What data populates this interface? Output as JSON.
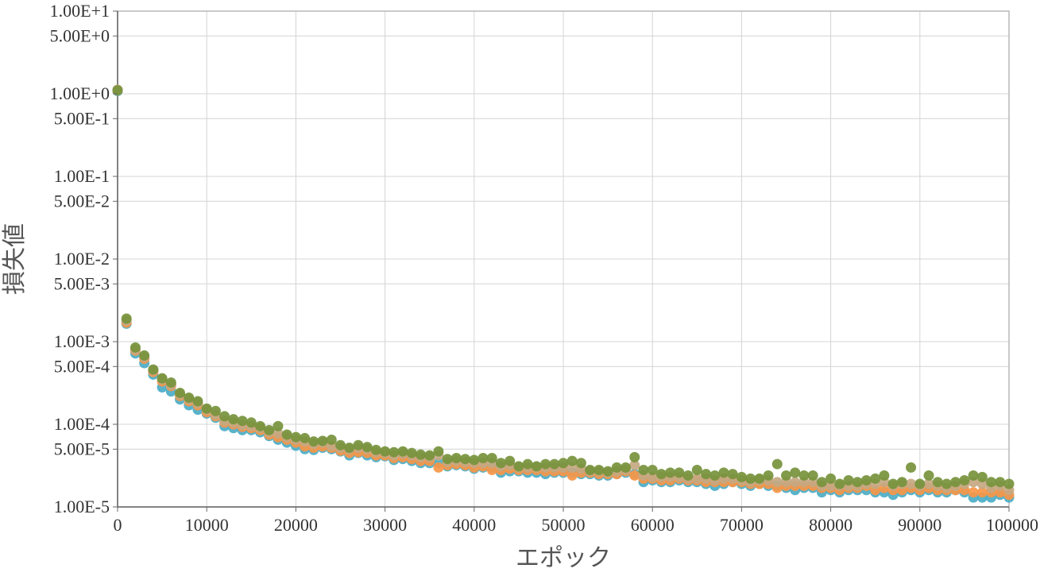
{
  "chart_data": {
    "type": "scatter",
    "xlabel": "エポック",
    "ylabel": "損失値",
    "x_scale": "linear",
    "y_scale": "log",
    "xlim": [
      0,
      100000
    ],
    "ylim": [
      1e-05,
      10
    ],
    "grid": true,
    "legend": "none",
    "x_ticks": [
      {
        "value": 0,
        "label": "0"
      },
      {
        "value": 10000,
        "label": "10000"
      },
      {
        "value": 20000,
        "label": "20000"
      },
      {
        "value": 30000,
        "label": "30000"
      },
      {
        "value": 40000,
        "label": "40000"
      },
      {
        "value": 50000,
        "label": "50000"
      },
      {
        "value": 60000,
        "label": "60000"
      },
      {
        "value": 70000,
        "label": "70000"
      },
      {
        "value": 80000,
        "label": "80000"
      },
      {
        "value": 90000,
        "label": "90000"
      },
      {
        "value": 100000,
        "label": "100000"
      }
    ],
    "y_ticks": [
      {
        "value": 10,
        "label": "1.00E+1"
      },
      {
        "value": 5,
        "label": "5.00E+0"
      },
      {
        "value": 1,
        "label": "1.00E+0"
      },
      {
        "value": 0.5,
        "label": "5.00E-1"
      },
      {
        "value": 0.1,
        "label": "1.00E-1"
      },
      {
        "value": 0.05,
        "label": "5.00E-2"
      },
      {
        "value": 0.01,
        "label": "1.00E-2"
      },
      {
        "value": 0.005,
        "label": "5.00E-3"
      },
      {
        "value": 0.001,
        "label": "1.00E-3"
      },
      {
        "value": 0.0005,
        "label": "5.00E-4"
      },
      {
        "value": 0.0001,
        "label": "1.00E-4"
      },
      {
        "value": 5e-05,
        "label": "5.00E-5"
      },
      {
        "value": 1e-05,
        "label": "1.00E-5"
      }
    ],
    "x": [
      0,
      1000,
      2000,
      3000,
      4000,
      5000,
      6000,
      7000,
      8000,
      9000,
      10000,
      11000,
      12000,
      13000,
      14000,
      15000,
      16000,
      17000,
      18000,
      19000,
      20000,
      21000,
      22000,
      23000,
      24000,
      25000,
      26000,
      27000,
      28000,
      29000,
      30000,
      31000,
      32000,
      33000,
      34000,
      35000,
      36000,
      37000,
      38000,
      39000,
      40000,
      41000,
      42000,
      43000,
      44000,
      45000,
      46000,
      47000,
      48000,
      49000,
      50000,
      51000,
      52000,
      53000,
      54000,
      55000,
      56000,
      57000,
      58000,
      59000,
      60000,
      61000,
      62000,
      63000,
      64000,
      65000,
      66000,
      67000,
      68000,
      69000,
      70000,
      71000,
      72000,
      73000,
      74000,
      75000,
      76000,
      77000,
      78000,
      79000,
      80000,
      81000,
      82000,
      83000,
      84000,
      85000,
      86000,
      87000,
      88000,
      89000,
      90000,
      91000,
      92000,
      93000,
      94000,
      95000,
      96000,
      97000,
      98000,
      99000,
      100000
    ],
    "series": [
      {
        "color": "#4bacc6",
        "values": [
          1.08,
          0.00165,
          0.00072,
          0.00055,
          0.0004,
          0.00028,
          0.00025,
          0.0002,
          0.00017,
          0.00015,
          0.000135,
          0.00012,
          9.5e-05,
          9e-05,
          8.5e-05,
          8.5e-05,
          8e-05,
          7.2e-05,
          6.5e-05,
          6e-05,
          5.5e-05,
          5e-05,
          4.9e-05,
          5.2e-05,
          5e-05,
          4.7e-05,
          4.2e-05,
          4.5e-05,
          4.2e-05,
          4e-05,
          4.1e-05,
          3.7e-05,
          3.8e-05,
          3.6e-05,
          3.4e-05,
          3.4e-05,
          3.4e-05,
          3.1e-05,
          3.2e-05,
          3.1e-05,
          2.9e-05,
          3e-05,
          3e-05,
          2.6e-05,
          2.7e-05,
          2.7e-05,
          2.6e-05,
          2.6e-05,
          2.5e-05,
          2.6e-05,
          2.6e-05,
          2.6e-05,
          2.5e-05,
          2.5e-05,
          2.4e-05,
          2.4e-05,
          2.5e-05,
          2.6e-05,
          2.5e-05,
          2e-05,
          2.1e-05,
          2e-05,
          2e-05,
          2.1e-05,
          2e-05,
          2e-05,
          1.9e-05,
          1.8e-05,
          1.9e-05,
          2e-05,
          1.9e-05,
          1.8e-05,
          1.9e-05,
          1.8e-05,
          1.8e-05,
          1.7e-05,
          1.6e-05,
          1.7e-05,
          1.7e-05,
          1.5e-05,
          1.6e-05,
          1.5e-05,
          1.6e-05,
          1.6e-05,
          1.6e-05,
          1.5e-05,
          1.5e-05,
          1.4e-05,
          1.5e-05,
          1.6e-05,
          1.5e-05,
          1.6e-05,
          1.5e-05,
          1.5e-05,
          1.6e-05,
          1.5e-05,
          1.3e-05,
          1.3e-05,
          1.3e-05,
          1.4e-05,
          1.3e-05
        ]
      },
      {
        "color": "#f79646",
        "values": [
          1.1,
          0.0017,
          0.00078,
          0.00062,
          0.00043,
          0.00033,
          0.00029,
          0.00022,
          0.00019,
          0.00017,
          0.00014,
          0.000125,
          0.000105,
          0.0001,
          9.3e-05,
          9e-05,
          8.5e-05,
          7.5e-05,
          7e-05,
          6.5e-05,
          6e-05,
          5.4e-05,
          5.2e-05,
          5.4e-05,
          5.2e-05,
          4.8e-05,
          4.5e-05,
          4.6e-05,
          4.5e-05,
          4.2e-05,
          4.2e-05,
          3.9e-05,
          4e-05,
          3.8e-05,
          3.6e-05,
          3.6e-05,
          3e-05,
          3.2e-05,
          3.3e-05,
          3.2e-05,
          3e-05,
          3.1e-05,
          2.8e-05,
          2.8e-05,
          2.9e-05,
          2.8e-05,
          2.8e-05,
          2.8e-05,
          2.7e-05,
          2.7e-05,
          2.7e-05,
          2.4e-05,
          2.6e-05,
          2.6e-05,
          2.5e-05,
          2.5e-05,
          2.5e-05,
          2.7e-05,
          2.4e-05,
          2.2e-05,
          2.2e-05,
          2.1e-05,
          2.1e-05,
          2.2e-05,
          2.1e-05,
          2.1e-05,
          2e-05,
          2e-05,
          2e-05,
          2e-05,
          2e-05,
          1.9e-05,
          1.9e-05,
          1.9e-05,
          1.7e-05,
          1.8e-05,
          1.8e-05,
          1.8e-05,
          1.8e-05,
          1.7e-05,
          1.7e-05,
          1.6e-05,
          1.7e-05,
          1.7e-05,
          1.8e-05,
          1.6e-05,
          1.7e-05,
          1.6e-05,
          1.6e-05,
          1.7e-05,
          1.6e-05,
          1.7e-05,
          1.6e-05,
          1.6e-05,
          1.6e-05,
          1.6e-05,
          1.5e-05,
          1.5e-05,
          1.5e-05,
          1.5e-05,
          1.4e-05
        ]
      },
      {
        "color": "#c4a882",
        "values": [
          1.12,
          0.0018,
          0.0008,
          0.00065,
          0.00045,
          0.00035,
          0.0003,
          0.00023,
          0.0002,
          0.00018,
          0.00015,
          0.00013,
          0.00011,
          0.000105,
          9.8e-05,
          9.5e-05,
          9e-05,
          8e-05,
          7.8e-05,
          7e-05,
          6.5e-05,
          6.2e-05,
          5.8e-05,
          6e-05,
          5.5e-05,
          5.2e-05,
          5e-05,
          5.2e-05,
          5e-05,
          4.6e-05,
          4.5e-05,
          4.2e-05,
          4.4e-05,
          4.2e-05,
          4e-05,
          4e-05,
          4.2e-05,
          3.5e-05,
          3.6e-05,
          3.5e-05,
          3.4e-05,
          3.4e-05,
          3.4e-05,
          3.1e-05,
          3.2e-05,
          3e-05,
          3e-05,
          3e-05,
          3e-05,
          3e-05,
          3e-05,
          3e-05,
          2.9e-05,
          2.7e-05,
          2.7e-05,
          2.6e-05,
          2.7e-05,
          2.8e-05,
          3.2e-05,
          2.4e-05,
          2.3e-05,
          2.3e-05,
          2.3e-05,
          2.3e-05,
          2.2e-05,
          2.2e-05,
          2.2e-05,
          2.1e-05,
          2.2e-05,
          2.2e-05,
          2.1e-05,
          2e-05,
          2.1e-05,
          2.1e-05,
          2e-05,
          2e-05,
          2e-05,
          2e-05,
          2e-05,
          1.8e-05,
          1.8e-05,
          1.8e-05,
          1.8e-05,
          1.8e-05,
          1.9e-05,
          1.9e-05,
          2e-05,
          1.8e-05,
          1.9e-05,
          1.9e-05,
          1.8e-05,
          1.9e-05,
          1.8e-05,
          1.7e-05,
          1.8e-05,
          1.9e-05,
          2e-05,
          1.9e-05,
          1.7e-05,
          1.8e-05,
          1.6e-05
        ]
      },
      {
        "color": "#76923c",
        "values": [
          1.1,
          0.0019,
          0.00085,
          0.00068,
          0.00046,
          0.00036,
          0.00032,
          0.00024,
          0.00021,
          0.00019,
          0.000155,
          0.000145,
          0.000125,
          0.000115,
          0.00011,
          0.000105,
          9.5e-05,
          8.5e-05,
          9.5e-05,
          7.5e-05,
          7e-05,
          6.8e-05,
          6.2e-05,
          6.3e-05,
          6.5e-05,
          5.6e-05,
          5.2e-05,
          5.6e-05,
          5.3e-05,
          4.9e-05,
          4.7e-05,
          4.6e-05,
          4.7e-05,
          4.5e-05,
          4.3e-05,
          4.2e-05,
          4.7e-05,
          3.8e-05,
          3.9e-05,
          3.8e-05,
          3.7e-05,
          3.9e-05,
          3.9e-05,
          3.4e-05,
          3.6e-05,
          3.1e-05,
          3.3e-05,
          3.1e-05,
          3.3e-05,
          3.3e-05,
          3.4e-05,
          3.6e-05,
          3.4e-05,
          2.8e-05,
          2.8e-05,
          2.7e-05,
          3e-05,
          3e-05,
          4e-05,
          2.8e-05,
          2.8e-05,
          2.5e-05,
          2.6e-05,
          2.6e-05,
          2.4e-05,
          2.8e-05,
          2.5e-05,
          2.4e-05,
          2.6e-05,
          2.5e-05,
          2.3e-05,
          2.2e-05,
          2.2e-05,
          2.4e-05,
          3.3e-05,
          2.4e-05,
          2.6e-05,
          2.4e-05,
          2.4e-05,
          2e-05,
          2.2e-05,
          1.9e-05,
          2.1e-05,
          2e-05,
          2.1e-05,
          2.2e-05,
          2.4e-05,
          1.9e-05,
          2e-05,
          3e-05,
          1.9e-05,
          2.4e-05,
          2e-05,
          1.9e-05,
          2e-05,
          2.1e-05,
          2.4e-05,
          2.3e-05,
          2e-05,
          2e-05,
          1.9e-05
        ]
      }
    ]
  }
}
